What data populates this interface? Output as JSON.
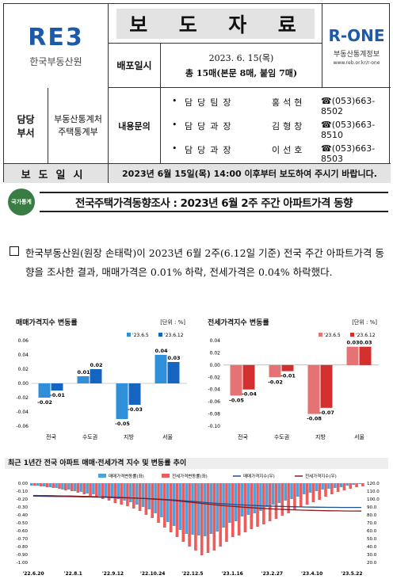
{
  "header": {
    "left_logo_mark": "RE3",
    "left_logo_name": "한국부동산원",
    "title_chars": [
      "보",
      "도",
      "자",
      "료"
    ],
    "right_logo_mark": "R-ONE",
    "right_logo_name": "부동산통계정보",
    "right_logo_url": "www.reb.or.kr/r-one",
    "distribution_label": "배포일시",
    "distribution_date": "2023. 6. 15(목)",
    "distribution_pages": "총 15매(본문 8매, 붙임 7매)",
    "dept_label_1": "담당",
    "dept_label_2": "부서",
    "team_line1": "부동산통계처",
    "team_line2": "주택통계부",
    "contact_label": "내용문의",
    "people": [
      {
        "role": "담당팀장",
        "name": "홍석현",
        "tel": "☎(053)663-8502"
      },
      {
        "role": "담당과장",
        "name": "김형창",
        "tel": "☎(053)663-8510"
      },
      {
        "role": "담당과장",
        "name": "이선호",
        "tel": "☎(053)663-8503"
      }
    ],
    "report_label": "보도일시",
    "report_text": "2023년 6월 15일(목) 14:00 이후부터 보도하여 주시기 바랍니다."
  },
  "headline": {
    "emblem_text": "국가통계",
    "title": "전국주택가격동향조사 : 2023년 6월 2주 주간 아파트가격 동향"
  },
  "body": {
    "paragraph": "한국부동산원(원장 손태락)이 2023년 6월 2주(6.12일 기준) 전국 주간 아파트가격 동향을 조사한 결과, 매매가격은 0.01% 하락, 전세가격은 0.04% 하락했다."
  },
  "chart_data": [
    {
      "type": "bar",
      "title": "매매가격지수 변동률",
      "unit": "[단위 : %]",
      "categories": [
        "전국",
        "수도권",
        "지방",
        "서울"
      ],
      "series": [
        {
          "name": "'23.6.5",
          "values": [
            -0.02,
            0.01,
            -0.05,
            0.04
          ],
          "color": "#2f8fd8"
        },
        {
          "name": "'23.6.12",
          "values": [
            -0.01,
            0.02,
            -0.03,
            0.03
          ],
          "color": "#1565c0"
        }
      ],
      "ylim": [
        -0.06,
        0.06
      ],
      "yticks": [
        "0.06",
        "0.04",
        "0.02",
        "0.00",
        "-0.02",
        "-0.04",
        "-0.06"
      ],
      "labels": [
        [
          "-0.02",
          "0.01",
          "-0.05",
          "0.04"
        ],
        [
          "-0.01",
          "0.02",
          "-0.03",
          "0.03"
        ]
      ]
    },
    {
      "type": "bar",
      "title": "전세가격지수 변동률",
      "unit": "[단위 : %]",
      "categories": [
        "전국",
        "수도권",
        "지방",
        "서울"
      ],
      "series": [
        {
          "name": "'23.6.5",
          "values": [
            -0.05,
            -0.02,
            -0.08,
            0.03
          ],
          "color": "#e57373"
        },
        {
          "name": "'23.6.12",
          "values": [
            -0.04,
            -0.01,
            -0.07,
            0.03
          ],
          "color": "#d32f2f"
        }
      ],
      "ylim": [
        -0.1,
        0.04
      ],
      "yticks": [
        "0.04",
        "0.02",
        "0.00",
        "-0.02",
        "-0.04",
        "-0.06",
        "-0.08",
        "-0.10"
      ],
      "labels": [
        [
          "-0.05",
          "-0.02",
          "-0.08",
          "0.03"
        ],
        [
          "-0.04",
          "-0.01",
          "-0.07",
          "0.03"
        ]
      ]
    },
    {
      "type": "line",
      "title": "최근 1년간 전국 아파트 매매·전세가격 지수 및 변동률 추이",
      "legend": [
        "매매가격변동률(좌)",
        "전세가격변동률(좌)",
        "매매가격지수(우)",
        "전세가격지수(우)"
      ],
      "colors": {
        "sale_rate": "#4aa3df",
        "jeonse_rate": "#ef5b5b",
        "sale_index": "#1f4e8c",
        "jeonse_index": "#8b1a1a"
      },
      "x_labels": [
        "'22.6.20",
        "'22.8.1",
        "'22.9.12",
        "'22.10.24",
        "'22.12.5",
        "'23.1.16",
        "'23.2.27",
        "'23.4.10",
        "'23.5.22"
      ],
      "y_left_ticks": [
        "0.00",
        "-0.10",
        "-0.20",
        "-0.30",
        "-0.40",
        "-0.50",
        "-0.60",
        "-0.70",
        "-0.80",
        "-0.90",
        "-1.00"
      ],
      "y_right_ticks": [
        "120.0",
        "110.0",
        "100.0",
        "90.0",
        "80.0",
        "70.0",
        "60.0",
        "50.0",
        "40.0",
        "30.0",
        "20.0"
      ],
      "y_left_range": [
        -1.0,
        0.0
      ],
      "y_right_range": [
        20,
        120
      ],
      "sale_rate": [
        -0.03,
        -0.03,
        -0.04,
        -0.05,
        -0.06,
        -0.08,
        -0.08,
        -0.1,
        -0.11,
        -0.13,
        -0.14,
        -0.16,
        -0.17,
        -0.19,
        -0.2,
        -0.22,
        -0.24,
        -0.27,
        -0.3,
        -0.33,
        -0.38,
        -0.43,
        -0.49,
        -0.54,
        -0.59,
        -0.64,
        -0.65,
        -0.66,
        -0.67,
        -0.64,
        -0.61,
        -0.56,
        -0.5,
        -0.48,
        -0.42,
        -0.4,
        -0.38,
        -0.35,
        -0.3,
        -0.27,
        -0.25,
        -0.22,
        -0.2,
        -0.17,
        -0.14,
        -0.12,
        -0.1,
        -0.08,
        -0.07,
        -0.06,
        -0.05,
        -0.03,
        -0.02,
        -0.01
      ],
      "jeonse_rate": [
        -0.03,
        -0.04,
        -0.05,
        -0.06,
        -0.07,
        -0.09,
        -0.1,
        -0.12,
        -0.14,
        -0.16,
        -0.18,
        -0.2,
        -0.22,
        -0.25,
        -0.27,
        -0.29,
        -0.32,
        -0.35,
        -0.4,
        -0.44,
        -0.5,
        -0.56,
        -0.62,
        -0.68,
        -0.74,
        -0.8,
        -0.85,
        -0.91,
        -0.88,
        -0.85,
        -0.8,
        -0.74,
        -0.68,
        -0.66,
        -0.62,
        -0.58,
        -0.55,
        -0.52,
        -0.48,
        -0.45,
        -0.41,
        -0.38,
        -0.34,
        -0.3,
        -0.27,
        -0.24,
        -0.21,
        -0.17,
        -0.14,
        -0.11,
        -0.09,
        -0.07,
        -0.05,
        -0.04
      ],
      "sale_index": [
        103.6,
        103.5,
        103.4,
        103.3,
        103.2,
        103.1,
        103.0,
        102.9,
        102.7,
        102.6,
        102.4,
        102.3,
        102.1,
        101.9,
        101.7,
        101.5,
        101.3,
        101.0,
        100.7,
        100.4,
        100.0,
        99.6,
        99.1,
        98.6,
        98.0,
        97.4,
        96.8,
        96.1,
        95.5,
        94.9,
        94.3,
        93.8,
        93.4,
        92.9,
        92.5,
        92.1,
        91.8,
        91.4,
        91.2,
        90.9,
        90.7,
        90.5,
        90.3,
        90.1,
        89.9,
        89.8,
        89.7,
        89.6,
        89.5,
        89.5,
        89.4,
        89.4,
        89.4,
        89.4
      ],
      "jeonse_index": [
        104.5,
        104.4,
        104.3,
        104.2,
        104.0,
        103.9,
        103.8,
        103.6,
        103.4,
        103.2,
        103.0,
        102.8,
        102.6,
        102.3,
        102.0,
        101.7,
        101.4,
        101.0,
        100.6,
        100.2,
        99.7,
        99.2,
        98.6,
        97.9,
        97.1,
        96.3,
        95.5,
        94.6,
        93.8,
        93.0,
        92.2,
        91.5,
        90.9,
        90.3,
        89.7,
        89.2,
        88.7,
        88.2,
        87.8,
        87.4,
        87.0,
        86.7,
        86.4,
        86.1,
        85.9,
        85.7,
        85.5,
        85.3,
        85.2,
        85.1,
        85.0,
        84.9,
        84.9,
        84.8
      ]
    }
  ]
}
